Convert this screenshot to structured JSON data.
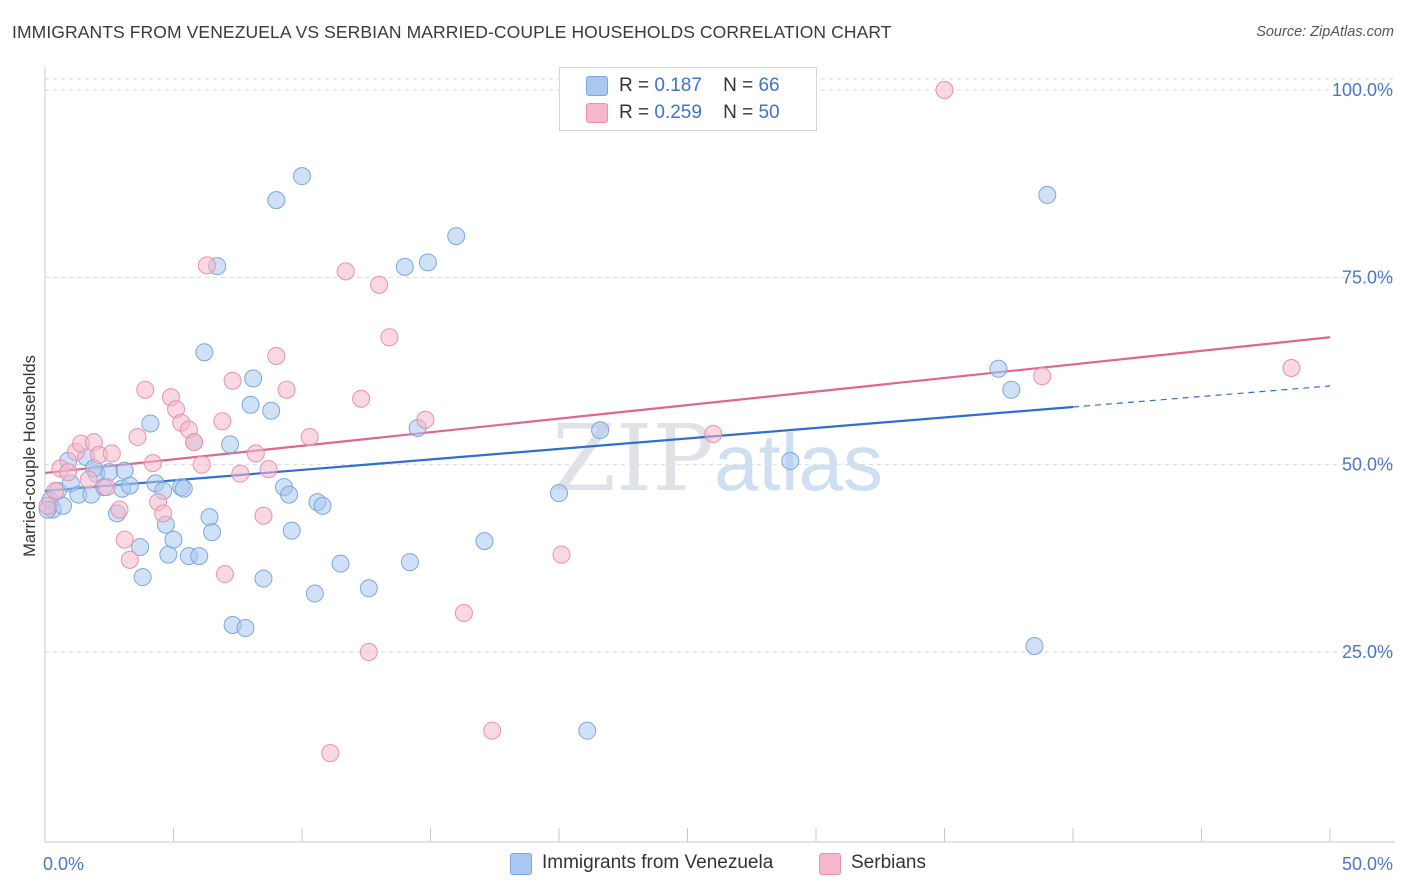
{
  "title": "IMMIGRANTS FROM VENEZUELA VS SERBIAN MARRIED-COUPLE HOUSEHOLDS CORRELATION CHART",
  "source": "Source: ZipAtlas.com",
  "watermark": {
    "zip": "ZIP",
    "atlas": "atlas"
  },
  "legend_box": {
    "rows": [
      {
        "r_label": "R =",
        "r_value": "0.187",
        "n_label": "N =",
        "n_value": "66",
        "color": "#a9c8ef"
      },
      {
        "r_label": "R =",
        "r_value": "0.259",
        "n_label": "N =",
        "n_value": "50",
        "color": "#f5b8cb"
      }
    ]
  },
  "bottom_legend": [
    {
      "label": "Immigrants from Venezuela",
      "color": "#a9c8ef"
    },
    {
      "label": "Serbians",
      "color": "#f5b8cb"
    }
  ],
  "chart_data": {
    "type": "scatter",
    "title": "IMMIGRANTS FROM VENEZUELA VS SERBIAN MARRIED-COUPLE HOUSEHOLDS CORRELATION CHART",
    "xlabel": "",
    "ylabel": "Married-couple Households",
    "xlim": [
      0,
      50
    ],
    "ylim": [
      0,
      105
    ],
    "x_tick_labels": [
      "0.0%",
      "50.0%"
    ],
    "y_ticks": [
      25,
      50,
      75,
      100
    ],
    "y_tick_labels": [
      "25.0%",
      "50.0%",
      "75.0%",
      "100.0%"
    ],
    "grid": true,
    "legend_placement": "top-center",
    "series": [
      {
        "name": "Immigrants from Venezuela",
        "color": "#7aa7e0",
        "fill": "#a9c8ef",
        "line_color": "#2f6fcd",
        "trend": {
          "x0": 0,
          "y0": 46.5,
          "x1": 40,
          "y1": 57.7,
          "dashed_to_x": 50,
          "dashed_to_y": 60.5
        },
        "points": [
          [
            0.2,
            45.2
          ],
          [
            0.3,
            44.0
          ],
          [
            0.5,
            46.5
          ],
          [
            0.7,
            44.5
          ],
          [
            0.9,
            50.5
          ],
          [
            1.0,
            47.5
          ],
          [
            1.3,
            46.0
          ],
          [
            1.6,
            51.0
          ],
          [
            1.8,
            46.0
          ],
          [
            2.0,
            48.8
          ],
          [
            2.3,
            47.0
          ],
          [
            2.5,
            49.0
          ],
          [
            2.8,
            43.5
          ],
          [
            3.0,
            46.8
          ],
          [
            3.1,
            49.2
          ],
          [
            3.3,
            47.2
          ],
          [
            3.7,
            39.0
          ],
          [
            3.8,
            35.0
          ],
          [
            4.1,
            55.5
          ],
          [
            4.3,
            47.5
          ],
          [
            4.6,
            46.5
          ],
          [
            4.7,
            42.0
          ],
          [
            4.8,
            38.0
          ],
          [
            5.0,
            40.0
          ],
          [
            5.3,
            47.0
          ],
          [
            5.4,
            46.8
          ],
          [
            5.6,
            37.8
          ],
          [
            5.8,
            53.0
          ],
          [
            6.0,
            37.8
          ],
          [
            6.2,
            65.0
          ],
          [
            6.4,
            43.0
          ],
          [
            6.5,
            41.0
          ],
          [
            6.7,
            76.5
          ],
          [
            7.2,
            52.7
          ],
          [
            7.3,
            28.6
          ],
          [
            7.8,
            28.2
          ],
          [
            8.0,
            58.0
          ],
          [
            8.1,
            61.5
          ],
          [
            8.5,
            34.8
          ],
          [
            8.8,
            57.2
          ],
          [
            9.0,
            85.3
          ],
          [
            9.3,
            47.0
          ],
          [
            9.5,
            46.0
          ],
          [
            9.6,
            41.2
          ],
          [
            10.0,
            88.5
          ],
          [
            10.5,
            32.8
          ],
          [
            10.6,
            45.0
          ],
          [
            10.8,
            44.5
          ],
          [
            11.5,
            36.8
          ],
          [
            12.6,
            33.5
          ],
          [
            14.0,
            76.4
          ],
          [
            14.2,
            37.0
          ],
          [
            14.5,
            54.9
          ],
          [
            14.9,
            77.0
          ],
          [
            16.0,
            80.5
          ],
          [
            17.1,
            39.8
          ],
          [
            20.0,
            46.2
          ],
          [
            21.1,
            14.5
          ],
          [
            21.6,
            54.6
          ],
          [
            29.0,
            50.5
          ],
          [
            37.1,
            62.8
          ],
          [
            37.6,
            60.0
          ],
          [
            38.5,
            25.8
          ],
          [
            39.0,
            86.0
          ],
          [
            0.1,
            44.0
          ],
          [
            1.9,
            49.5
          ]
        ]
      },
      {
        "name": "Serbians",
        "color": "#eb8fad",
        "fill": "#f5b8cb",
        "line_color": "#e0668e",
        "trend": {
          "x0": 0,
          "y0": 48.9,
          "x1": 50,
          "y1": 67.0
        },
        "points": [
          [
            0.1,
            44.5
          ],
          [
            0.4,
            46.5
          ],
          [
            0.6,
            49.5
          ],
          [
            0.9,
            49.0
          ],
          [
            1.2,
            51.7
          ],
          [
            1.4,
            52.8
          ],
          [
            1.7,
            48.0
          ],
          [
            1.9,
            53.0
          ],
          [
            2.1,
            51.3
          ],
          [
            2.4,
            47.0
          ],
          [
            2.6,
            51.5
          ],
          [
            2.9,
            44.0
          ],
          [
            3.1,
            40.0
          ],
          [
            3.3,
            37.3
          ],
          [
            3.6,
            53.7
          ],
          [
            3.9,
            60.0
          ],
          [
            4.2,
            50.2
          ],
          [
            4.4,
            45.0
          ],
          [
            4.6,
            43.5
          ],
          [
            4.9,
            59.0
          ],
          [
            5.1,
            57.4
          ],
          [
            5.3,
            55.6
          ],
          [
            5.6,
            54.7
          ],
          [
            5.8,
            53.0
          ],
          [
            6.1,
            50.0
          ],
          [
            6.3,
            76.6
          ],
          [
            6.9,
            55.8
          ],
          [
            7.0,
            35.4
          ],
          [
            7.3,
            61.2
          ],
          [
            7.6,
            48.8
          ],
          [
            8.2,
            51.5
          ],
          [
            8.5,
            43.2
          ],
          [
            8.7,
            49.4
          ],
          [
            9.0,
            64.5
          ],
          [
            9.4,
            60.0
          ],
          [
            10.3,
            53.7
          ],
          [
            11.7,
            75.8
          ],
          [
            12.3,
            58.8
          ],
          [
            12.6,
            25.0
          ],
          [
            13.0,
            74.0
          ],
          [
            13.4,
            67.0
          ],
          [
            14.8,
            56.0
          ],
          [
            16.3,
            30.2
          ],
          [
            17.4,
            14.5
          ],
          [
            20.1,
            38.0
          ],
          [
            26.0,
            54.1
          ],
          [
            35.0,
            100.0
          ],
          [
            38.8,
            61.8
          ],
          [
            48.5,
            62.9
          ],
          [
            11.1,
            11.5
          ]
        ]
      }
    ]
  }
}
